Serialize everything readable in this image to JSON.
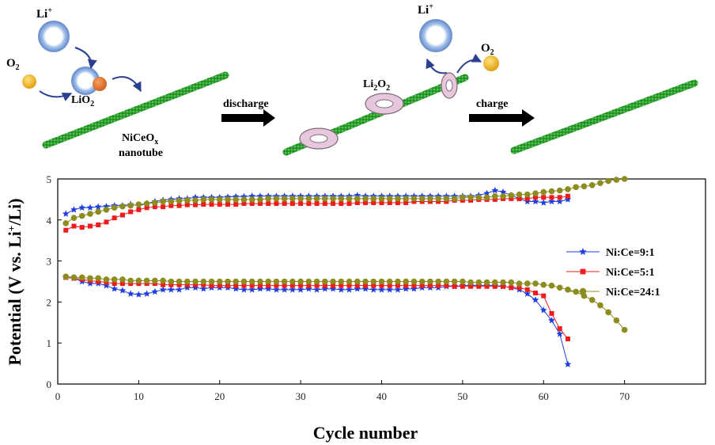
{
  "schematic": {
    "li_plus_1": "Li",
    "li_plus_2": "Li",
    "superscript_plus": "+",
    "o2_1": "O",
    "o2_2": "O",
    "lio2_prefix": "LiO",
    "li2o2_a": "Li",
    "li2o2_b": "O",
    "subscript_2": "2",
    "nanotube_line1_prefix": "NiCeO",
    "nanotube_line1_sub": "x",
    "nanotube_line2": "nanotube",
    "discharge_label": "discharge",
    "charge_label": "charge",
    "colors": {
      "nanotube_green": "#2e9e2e",
      "li_ring_blue": "#8fb0e0",
      "o2_yellow": "#f2b62a",
      "lio2_orange": "#e4772c",
      "li2o2_pink": "#e6c7de",
      "arrow_black": "#000000"
    }
  },
  "chart_data": {
    "type": "line",
    "xlabel": "Cycle number",
    "ylabel_prefix": "Potential (V vs. Li",
    "ylabel_sup": "+",
    "ylabel_suffix": "/Li)",
    "xlim": [
      0,
      80
    ],
    "ylim": [
      0,
      5
    ],
    "xticks": [
      0,
      10,
      20,
      30,
      40,
      50,
      60,
      70
    ],
    "yticks": [
      0,
      1,
      2,
      3,
      4,
      5
    ],
    "grid": false,
    "legend_position": "right",
    "series": [
      {
        "name": "Ni:Ce=9:1",
        "color": "#1f3ee0",
        "marker": "star",
        "charge": {
          "x": [
            1,
            2,
            3,
            4,
            5,
            6,
            7,
            8,
            9,
            10,
            11,
            12,
            13,
            14,
            15,
            16,
            17,
            18,
            19,
            20,
            21,
            22,
            23,
            24,
            25,
            26,
            27,
            28,
            29,
            30,
            31,
            32,
            33,
            34,
            35,
            36,
            37,
            38,
            39,
            40,
            41,
            42,
            43,
            44,
            45,
            46,
            47,
            48,
            49,
            50,
            51,
            52,
            53,
            54,
            55,
            56,
            57,
            58,
            59,
            60,
            61,
            62,
            63
          ],
          "y": [
            4.15,
            4.25,
            4.3,
            4.3,
            4.32,
            4.33,
            4.35,
            4.35,
            4.38,
            4.35,
            4.4,
            4.45,
            4.48,
            4.5,
            4.52,
            4.52,
            4.55,
            4.55,
            4.55,
            4.55,
            4.56,
            4.57,
            4.57,
            4.58,
            4.58,
            4.58,
            4.58,
            4.58,
            4.58,
            4.58,
            4.58,
            4.58,
            4.58,
            4.58,
            4.58,
            4.58,
            4.6,
            4.58,
            4.58,
            4.58,
            4.58,
            4.58,
            4.58,
            4.58,
            4.58,
            4.58,
            4.58,
            4.58,
            4.58,
            4.58,
            4.58,
            4.6,
            4.65,
            4.72,
            4.68,
            4.6,
            4.52,
            4.45,
            4.45,
            4.42,
            4.45,
            4.45,
            4.5
          ]
        },
        "discharge": {
          "x": [
            1,
            2,
            3,
            4,
            5,
            6,
            7,
            8,
            9,
            10,
            11,
            12,
            13,
            14,
            15,
            16,
            17,
            18,
            19,
            20,
            21,
            22,
            23,
            24,
            25,
            26,
            27,
            28,
            29,
            30,
            31,
            32,
            33,
            34,
            35,
            36,
            37,
            38,
            39,
            40,
            41,
            42,
            43,
            44,
            45,
            46,
            47,
            48,
            49,
            50,
            51,
            52,
            53,
            54,
            55,
            56,
            57,
            58,
            59,
            60,
            61,
            62,
            63
          ],
          "y": [
            2.6,
            2.58,
            2.5,
            2.45,
            2.45,
            2.4,
            2.32,
            2.28,
            2.2,
            2.18,
            2.2,
            2.25,
            2.3,
            2.3,
            2.3,
            2.35,
            2.35,
            2.32,
            2.35,
            2.35,
            2.35,
            2.32,
            2.3,
            2.3,
            2.32,
            2.32,
            2.3,
            2.3,
            2.3,
            2.3,
            2.32,
            2.3,
            2.32,
            2.32,
            2.3,
            2.3,
            2.32,
            2.32,
            2.3,
            2.3,
            2.3,
            2.3,
            2.32,
            2.32,
            2.35,
            2.35,
            2.35,
            2.38,
            2.38,
            2.4,
            2.4,
            2.4,
            2.4,
            2.4,
            2.38,
            2.35,
            2.3,
            2.2,
            2.05,
            1.8,
            1.55,
            1.22,
            0.48
          ]
        }
      },
      {
        "name": "Ni:Ce=5:1",
        "color": "#ee1c1c",
        "marker": "square",
        "charge": {
          "x": [
            1,
            2,
            3,
            4,
            5,
            6,
            7,
            8,
            9,
            10,
            11,
            12,
            13,
            14,
            15,
            16,
            17,
            18,
            19,
            20,
            21,
            22,
            23,
            24,
            25,
            26,
            27,
            28,
            29,
            30,
            31,
            32,
            33,
            34,
            35,
            36,
            37,
            38,
            39,
            40,
            41,
            42,
            43,
            44,
            45,
            46,
            47,
            48,
            49,
            50,
            51,
            52,
            53,
            54,
            55,
            56,
            57,
            58,
            59,
            60,
            61,
            62,
            63
          ],
          "y": [
            3.75,
            3.85,
            3.82,
            3.85,
            3.88,
            3.95,
            4.05,
            4.12,
            4.2,
            4.25,
            4.3,
            4.32,
            4.32,
            4.35,
            4.35,
            4.37,
            4.37,
            4.38,
            4.38,
            4.38,
            4.38,
            4.38,
            4.4,
            4.4,
            4.4,
            4.4,
            4.4,
            4.4,
            4.4,
            4.4,
            4.4,
            4.4,
            4.4,
            4.4,
            4.4,
            4.4,
            4.42,
            4.42,
            4.42,
            4.42,
            4.42,
            4.42,
            4.42,
            4.45,
            4.45,
            4.45,
            4.45,
            4.45,
            4.48,
            4.48,
            4.48,
            4.5,
            4.5,
            4.5,
            4.52,
            4.52,
            4.52,
            4.52,
            4.55,
            4.55,
            4.55,
            4.55,
            4.58
          ]
        },
        "discharge": {
          "x": [
            1,
            2,
            3,
            4,
            5,
            6,
            7,
            8,
            9,
            10,
            11,
            12,
            13,
            14,
            15,
            16,
            17,
            18,
            19,
            20,
            21,
            22,
            23,
            24,
            25,
            26,
            27,
            28,
            29,
            30,
            31,
            32,
            33,
            34,
            35,
            36,
            37,
            38,
            39,
            40,
            41,
            42,
            43,
            44,
            45,
            46,
            47,
            48,
            49,
            50,
            51,
            52,
            53,
            54,
            55,
            56,
            57,
            58,
            59,
            60,
            61,
            62,
            63
          ],
          "y": [
            2.6,
            2.58,
            2.55,
            2.52,
            2.5,
            2.48,
            2.45,
            2.45,
            2.45,
            2.45,
            2.45,
            2.45,
            2.42,
            2.42,
            2.42,
            2.42,
            2.42,
            2.42,
            2.4,
            2.4,
            2.4,
            2.4,
            2.4,
            2.4,
            2.4,
            2.4,
            2.4,
            2.4,
            2.4,
            2.4,
            2.4,
            2.4,
            2.4,
            2.4,
            2.4,
            2.4,
            2.4,
            2.4,
            2.4,
            2.4,
            2.4,
            2.4,
            2.4,
            2.4,
            2.4,
            2.4,
            2.4,
            2.4,
            2.38,
            2.38,
            2.38,
            2.38,
            2.38,
            2.38,
            2.38,
            2.35,
            2.35,
            2.3,
            2.22,
            2.15,
            1.72,
            1.35,
            1.1
          ]
        }
      },
      {
        "name": "Ni:Ce=24:1",
        "color": "#8d8c1e",
        "marker": "circle",
        "charge": {
          "x": [
            1,
            2,
            3,
            4,
            5,
            6,
            7,
            8,
            9,
            10,
            11,
            12,
            13,
            14,
            15,
            16,
            17,
            18,
            19,
            20,
            21,
            22,
            23,
            24,
            25,
            26,
            27,
            28,
            29,
            30,
            31,
            32,
            33,
            34,
            35,
            36,
            37,
            38,
            39,
            40,
            41,
            42,
            43,
            44,
            45,
            46,
            47,
            48,
            49,
            50,
            51,
            52,
            53,
            54,
            55,
            56,
            57,
            58,
            59,
            60,
            61,
            62,
            63,
            64,
            65,
            66,
            67,
            68,
            69,
            70
          ],
          "y": [
            3.92,
            4.05,
            4.1,
            4.15,
            4.2,
            4.25,
            4.3,
            4.33,
            4.35,
            4.38,
            4.4,
            4.42,
            4.45,
            4.45,
            4.47,
            4.48,
            4.48,
            4.5,
            4.5,
            4.5,
            4.5,
            4.5,
            4.5,
            4.5,
            4.5,
            4.52,
            4.52,
            4.52,
            4.52,
            4.52,
            4.52,
            4.52,
            4.52,
            4.52,
            4.52,
            4.52,
            4.52,
            4.52,
            4.52,
            4.52,
            4.52,
            4.52,
            4.52,
            4.52,
            4.52,
            4.52,
            4.52,
            4.52,
            4.52,
            4.55,
            4.55,
            4.55,
            4.55,
            4.58,
            4.58,
            4.6,
            4.62,
            4.62,
            4.65,
            4.68,
            4.7,
            4.72,
            4.75,
            4.8,
            4.82,
            4.85,
            4.9,
            4.95,
            4.98,
            5.0
          ]
        },
        "discharge": {
          "x": [
            1,
            2,
            3,
            4,
            5,
            6,
            7,
            8,
            9,
            10,
            11,
            12,
            13,
            14,
            15,
            16,
            17,
            18,
            19,
            20,
            21,
            22,
            23,
            24,
            25,
            26,
            27,
            28,
            29,
            30,
            31,
            32,
            33,
            34,
            35,
            36,
            37,
            38,
            39,
            40,
            41,
            42,
            43,
            44,
            45,
            46,
            47,
            48,
            49,
            50,
            51,
            52,
            53,
            54,
            55,
            56,
            57,
            58,
            59,
            60,
            61,
            62,
            63,
            64,
            65,
            66,
            67,
            68,
            69,
            70
          ],
          "y": [
            2.62,
            2.6,
            2.6,
            2.58,
            2.58,
            2.55,
            2.55,
            2.55,
            2.52,
            2.52,
            2.52,
            2.52,
            2.52,
            2.5,
            2.5,
            2.5,
            2.5,
            2.5,
            2.5,
            2.5,
            2.5,
            2.5,
            2.5,
            2.5,
            2.5,
            2.5,
            2.5,
            2.5,
            2.5,
            2.5,
            2.5,
            2.5,
            2.5,
            2.5,
            2.5,
            2.5,
            2.5,
            2.5,
            2.5,
            2.5,
            2.5,
            2.5,
            2.5,
            2.5,
            2.5,
            2.5,
            2.5,
            2.5,
            2.5,
            2.5,
            2.48,
            2.48,
            2.48,
            2.48,
            2.48,
            2.48,
            2.45,
            2.45,
            2.45,
            2.42,
            2.4,
            2.35,
            2.3,
            2.25,
            2.15,
            2.05,
            1.92,
            1.75,
            1.55,
            1.32
          ]
        }
      }
    ]
  }
}
